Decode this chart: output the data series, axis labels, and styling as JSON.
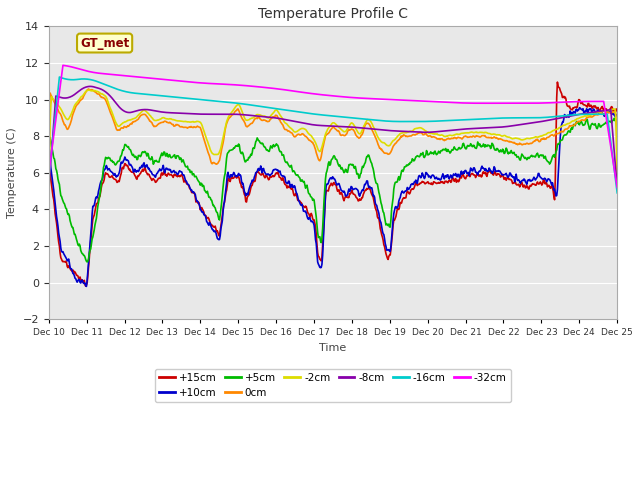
{
  "title": "Temperature Profile C",
  "xlabel": "Time",
  "ylabel": "Temperature (C)",
  "ylim": [
    -2,
    14
  ],
  "xlim": [
    0,
    15
  ],
  "bg_color": "#e0e0e0",
  "plot_bg": "#e8e8e8",
  "series_colors": {
    "+15cm": "#cc0000",
    "+10cm": "#0000cc",
    "+5cm": "#00bb00",
    "0cm": "#ff8800",
    "-2cm": "#dddd00",
    "-8cm": "#8800aa",
    "-16cm": "#00cccc",
    "-32cm": "#ff00ff"
  },
  "x_tick_labels": [
    "Dec 10",
    "Dec 11",
    "Dec 12",
    "Dec 13",
    "Dec 14",
    "Dec 15",
    "Dec 16",
    "Dec 17",
    "Dec 18",
    "Dec 19",
    "Dec 20",
    "Dec 21",
    "Dec 22",
    "Dec 23",
    "Dec 24",
    "Dec 25"
  ],
  "yticks": [
    -2,
    0,
    2,
    4,
    6,
    8,
    10,
    12,
    14
  ],
  "annotation_text": "GT_met",
  "annotation_box_color": "#ffffcc",
  "annotation_box_edge": "#bbaa00",
  "annotation_text_color": "#880000",
  "legend_row1": [
    "+15cm",
    "+10cm",
    "+5cm",
    "0cm",
    "-2cm",
    "-8cm"
  ],
  "legend_row2": [
    "-16cm",
    "-32cm"
  ]
}
